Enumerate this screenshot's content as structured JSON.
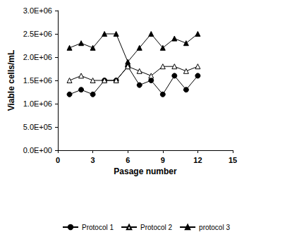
{
  "chart_data": {
    "type": "line",
    "x_label": "Pasage number",
    "y_label": "Viable cells/mL",
    "x": [
      1,
      2,
      3,
      4,
      5,
      6,
      7,
      8,
      9,
      10,
      11,
      12
    ],
    "series": [
      {
        "name": "Protocol 1",
        "color": "#000000",
        "marker": "circle",
        "values": [
          1200000,
          1300000,
          1200000,
          1500000,
          1500000,
          1800000,
          1400000,
          1500000,
          1200000,
          1600000,
          1300000,
          1600000
        ]
      },
      {
        "name": "Protocol 2",
        "color": "#000000",
        "marker": "open-triangle",
        "values": [
          1500000,
          1600000,
          1500000,
          1500000,
          1500000,
          1800000,
          1700000,
          1600000,
          1800000,
          1800000,
          1700000,
          1800000
        ]
      },
      {
        "name": "protocol 3",
        "color": "#000000",
        "marker": "triangle",
        "values": [
          2200000,
          2300000,
          2200000,
          2500000,
          2500000,
          1900000,
          2200000,
          2500000,
          2200000,
          2400000,
          2300000,
          2500000
        ]
      }
    ],
    "xlim": [
      0,
      15
    ],
    "xticks": [
      0,
      3,
      6,
      9,
      12,
      15
    ],
    "ylim": [
      0,
      3000000
    ],
    "yticks": [
      {
        "value": 0,
        "label": "0.0E+00"
      },
      {
        "value": 500000,
        "label": "5.0E+05"
      },
      {
        "value": 1000000,
        "label": "1.0E+06"
      },
      {
        "value": 1500000,
        "label": "1.5E+06"
      },
      {
        "value": 2000000,
        "label": "2.0E+06"
      },
      {
        "value": 2500000,
        "label": "2.5E+06"
      },
      {
        "value": 3000000,
        "label": "3.0E+06"
      }
    ],
    "grid": false,
    "legend": "bottom"
  }
}
